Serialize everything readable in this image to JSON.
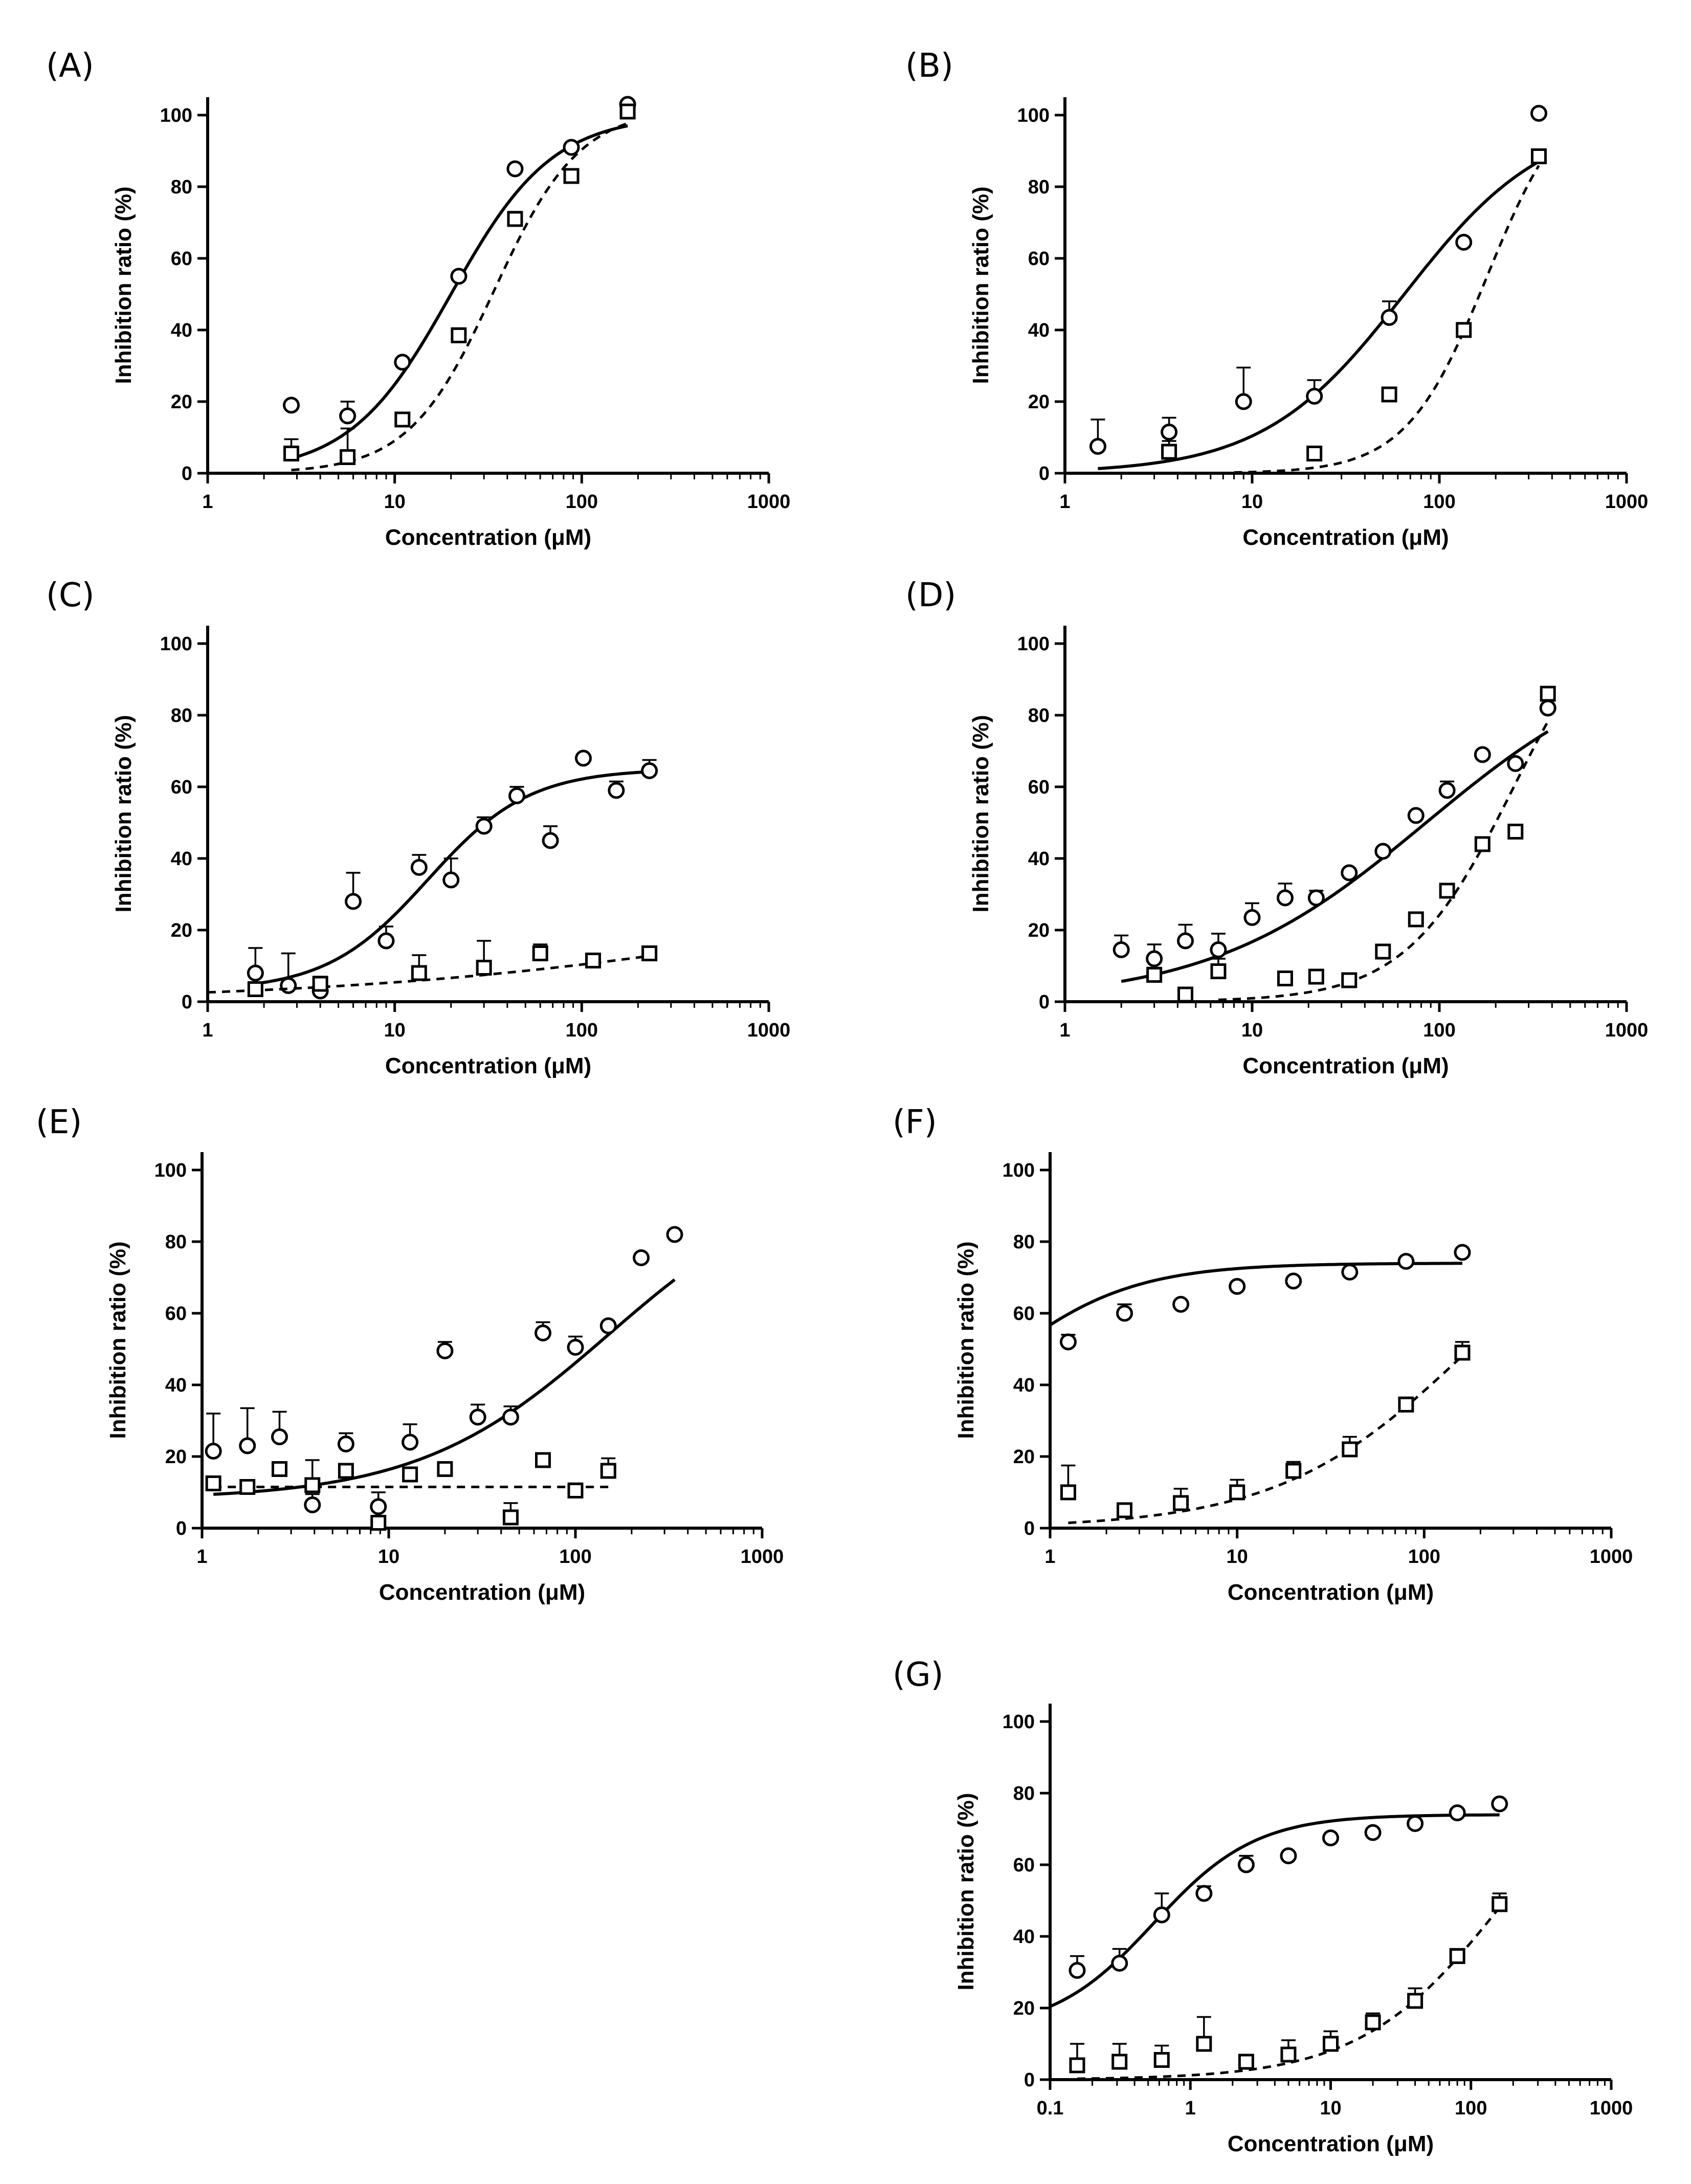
{
  "chart_data": [
    {
      "type": "scatter",
      "panel_label": "(A)",
      "xlabel": "Concentration (μM)",
      "ylabel": "Inhibition ratio (%)",
      "xscale": "log",
      "xlim": [
        1,
        1000
      ],
      "ylim": [
        0,
        105
      ],
      "xticks": [
        1,
        10,
        100,
        1000
      ],
      "xtick_labels": [
        "1",
        "10",
        "100",
        "1000"
      ],
      "yticks": [
        0,
        20,
        40,
        60,
        80,
        100
      ],
      "ytick_labels": [
        "0",
        "20",
        "40",
        "60",
        "80",
        "100"
      ],
      "series": [
        {
          "marker": "circle",
          "fit": "solid",
          "x": [
            2.8,
            5.6,
            11,
            22,
            44,
            88,
            176
          ],
          "y": [
            19,
            16,
            31,
            55,
            85,
            91,
            103
          ],
          "err": [
            0,
            4,
            0,
            0,
            0,
            0,
            0
          ],
          "fit_curve": {
            "bottom": 0,
            "top": 100,
            "ec50": 20,
            "hill": 1.6,
            "x_range": [
              2.8,
              176
            ]
          }
        },
        {
          "marker": "square",
          "fit": "dashed",
          "x": [
            2.8,
            5.6,
            11,
            22,
            44,
            88,
            176
          ],
          "y": [
            5.5,
            4.5,
            15,
            38.5,
            71,
            83,
            101
          ],
          "err": [
            4,
            8,
            0,
            2,
            2,
            0,
            0
          ],
          "fit_curve": {
            "bottom": 0,
            "top": 102,
            "ec50": 34,
            "hill": 1.9,
            "x_range": [
              2.8,
              176
            ]
          }
        }
      ]
    },
    {
      "type": "scatter",
      "panel_label": "(B)",
      "xlabel": "Concentration (μM)",
      "ylabel": "Inhibition ratio (%)",
      "xscale": "log",
      "xlim": [
        1,
        1000
      ],
      "ylim": [
        0,
        105
      ],
      "xticks": [
        1,
        10,
        100,
        1000
      ],
      "xtick_labels": [
        "1",
        "10",
        "100",
        "1000"
      ],
      "yticks": [
        0,
        20,
        40,
        60,
        80,
        100
      ],
      "ytick_labels": [
        "0",
        "20",
        "40",
        "60",
        "80",
        "100"
      ],
      "series": [
        {
          "marker": "circle",
          "fit": "solid",
          "x": [
            1.5,
            3.6,
            9,
            21.5,
            54,
            135,
            340
          ],
          "y": [
            7.5,
            11.5,
            20,
            21.5,
            43.5,
            64.5,
            100.5
          ],
          "err": [
            7.5,
            4,
            9.5,
            4.5,
            4.5,
            0,
            0
          ],
          "fit_curve": {
            "bottom": 0,
            "top": 100,
            "ec50": 65,
            "hill": 1.15,
            "x_range": [
              1.5,
              340
            ]
          }
        },
        {
          "marker": "square",
          "fit": "dashed",
          "x": [
            3.6,
            21.5,
            54,
            135,
            340
          ],
          "y": [
            6,
            5.5,
            22,
            40,
            88.5
          ],
          "err": [
            3,
            0,
            0,
            0,
            0
          ],
          "fit_curve": {
            "bottom": 0,
            "top": 110,
            "ec50": 180,
            "hill": 2.0,
            "x_range": [
              8,
              340
            ]
          }
        }
      ]
    },
    {
      "type": "scatter",
      "panel_label": "(C)",
      "xlabel": "Concentration (μM)",
      "ylabel": "Inhibition ratio (%)",
      "xscale": "log",
      "xlim": [
        1,
        1000
      ],
      "ylim": [
        0,
        105
      ],
      "xticks": [
        1,
        10,
        100,
        1000
      ],
      "xtick_labels": [
        "1",
        "10",
        "100",
        "1000"
      ],
      "yticks": [
        0,
        20,
        40,
        60,
        80,
        100
      ],
      "ytick_labels": [
        "0",
        "20",
        "40",
        "60",
        "80",
        "100"
      ],
      "series": [
        {
          "marker": "circle",
          "fit": "solid",
          "x": [
            1.8,
            2.7,
            4,
            6,
            9,
            13.5,
            20,
            30,
            45,
            68,
            102,
            153,
            230
          ],
          "y": [
            8,
            4.5,
            3,
            28,
            17,
            37.5,
            34,
            49,
            57.5,
            45,
            68,
            59,
            64.5
          ],
          "err": [
            7,
            9,
            0,
            8,
            4,
            3.5,
            6,
            2.5,
            2.5,
            4,
            0,
            2.5,
            3
          ],
          "fit_curve": {
            "bottom": 3,
            "top": 65,
            "ec50": 15,
            "hill": 1.6,
            "x_range": [
              1.8,
              230
            ]
          }
        },
        {
          "marker": "square",
          "fit": "dashed",
          "x": [
            1.8,
            4,
            13.5,
            30,
            60,
            115,
            230
          ],
          "y": [
            3.5,
            5,
            8,
            9.5,
            13.5,
            11.5,
            13.5
          ],
          "err": [
            0,
            2,
            5,
            7.5,
            2.5,
            0,
            0
          ],
          "fit_curve": {
            "bottom": 0,
            "top": 40,
            "ec50": 2000,
            "hill": 0.35,
            "x_range": [
              1,
              230
            ]
          }
        }
      ]
    },
    {
      "type": "scatter",
      "panel_label": "(D)",
      "xlabel": "Concentration (μM)",
      "ylabel": "Inhibition ratio (%)",
      "xscale": "log",
      "xlim": [
        1,
        1000
      ],
      "ylim": [
        0,
        105
      ],
      "xticks": [
        1,
        10,
        100,
        1000
      ],
      "xtick_labels": [
        "1",
        "10",
        "100",
        "1000"
      ],
      "yticks": [
        0,
        20,
        40,
        60,
        80,
        100
      ],
      "ytick_labels": [
        "0",
        "20",
        "40",
        "60",
        "80",
        "100"
      ],
      "series": [
        {
          "marker": "circle",
          "fit": "solid",
          "x": [
            2,
            3,
            4.4,
            6.6,
            10,
            15,
            22,
            33,
            50,
            75,
            110,
            170,
            255,
            380
          ],
          "y": [
            14.5,
            12,
            17,
            14.5,
            23.5,
            29,
            29,
            36,
            42,
            52,
            59,
            69,
            66.5,
            82
          ],
          "err": [
            4,
            4,
            4.5,
            4.5,
            4,
            4,
            2,
            0,
            0,
            0,
            2.5,
            0,
            0,
            0
          ],
          "fit_curve": {
            "bottom": 0,
            "top": 100,
            "ec50": 85,
            "hill": 0.75,
            "x_range": [
              2,
              380
            ]
          }
        },
        {
          "marker": "square",
          "fit": "dashed",
          "x": [
            3,
            4.4,
            6.6,
            15,
            22,
            33,
            50,
            75,
            110,
            170,
            255,
            380
          ],
          "y": [
            7.5,
            2,
            8.5,
            6.5,
            7,
            6,
            14,
            23,
            31,
            44,
            47.5,
            86
          ],
          "err": [
            2,
            0,
            3.5,
            0,
            0,
            0,
            0,
            0,
            0,
            0,
            0,
            0
          ],
          "fit_curve": {
            "bottom": 0,
            "top": 120,
            "ec50": 250,
            "hill": 1.5,
            "x_range": [
              6.6,
              380
            ]
          }
        }
      ]
    },
    {
      "type": "scatter",
      "panel_label": "(E)",
      "xlabel": "Concentration (μM)",
      "ylabel": "Inhibition ratio (%)",
      "xscale": "log",
      "xlim": [
        1,
        1000
      ],
      "ylim": [
        0,
        105
      ],
      "xticks": [
        1,
        10,
        100,
        1000
      ],
      "xtick_labels": [
        "1",
        "10",
        "100",
        "1000"
      ],
      "yticks": [
        0,
        20,
        40,
        60,
        80,
        100
      ],
      "ytick_labels": [
        "0",
        "20",
        "40",
        "60",
        "80",
        "100"
      ],
      "series": [
        {
          "marker": "circle",
          "fit": "solid",
          "x": [
            1.15,
            1.75,
            2.6,
            3.9,
            5.9,
            8.8,
            13,
            20,
            30,
            45,
            67,
            100,
            150,
            225,
            340
          ],
          "y": [
            21.5,
            23,
            25.5,
            6.5,
            23.5,
            6,
            24,
            49.5,
            31,
            31,
            54.5,
            50.5,
            56.5,
            75.5,
            82
          ],
          "err": [
            10.5,
            10.5,
            7,
            3,
            3,
            4,
            5,
            2.5,
            3.5,
            3,
            3,
            3,
            0,
            0,
            0
          ],
          "fit_curve": {
            "bottom": 8,
            "top": 100,
            "ec50": 150,
            "hill": 0.85,
            "x_range": [
              1.15,
              340
            ]
          }
        },
        {
          "marker": "square",
          "fit": "dashed",
          "x": [
            1.15,
            1.75,
            2.6,
            3.9,
            5.9,
            8.8,
            13,
            20,
            45,
            67,
            100,
            150
          ],
          "y": [
            12.5,
            11.5,
            16.5,
            12,
            16,
            1.5,
            15,
            16.5,
            3,
            19,
            10.5,
            16
          ],
          "err": [
            0,
            0,
            0,
            7,
            0,
            0,
            0,
            0,
            4,
            0,
            2,
            3.5
          ],
          "fit_curve": {
            "bottom": 11.5,
            "top": 11.5,
            "ec50": 10,
            "hill": 1,
            "x_range": [
              1.15,
              150
            ]
          }
        }
      ]
    },
    {
      "type": "scatter",
      "panel_label": "(F)",
      "xlabel": "Concentration (μM)",
      "ylabel": "Inhibition ratio (%)",
      "xscale": "log",
      "xlim": [
        1,
        1000
      ],
      "ylim": [
        0,
        105
      ],
      "xticks": [
        1,
        10,
        100,
        1000
      ],
      "xtick_labels": [
        "1",
        "10",
        "100",
        "1000"
      ],
      "yticks": [
        0,
        20,
        40,
        60,
        80,
        100
      ],
      "ytick_labels": [
        "0",
        "20",
        "40",
        "60",
        "80",
        "100"
      ],
      "series": [
        {
          "marker": "circle",
          "fit": "solid",
          "x": [
            1.25,
            2.5,
            5,
            10,
            20,
            40,
            80,
            160
          ],
          "y": [
            52,
            60,
            62.5,
            67.5,
            69,
            71.5,
            74.5,
            77
          ],
          "err": [
            2,
            2.5,
            0,
            0,
            0,
            0,
            0,
            0
          ],
          "fit_curve": {
            "bottom": 17,
            "top": 74,
            "ec50": 0.5,
            "hill": 1.2,
            "x_range": [
              1,
              160
            ]
          }
        },
        {
          "marker": "square",
          "fit": "dashed",
          "x": [
            1.25,
            2.5,
            5,
            10,
            20,
            40,
            80,
            160
          ],
          "y": [
            10,
            5,
            7,
            10,
            16,
            22,
            34.5,
            49
          ],
          "err": [
            7.5,
            0,
            4,
            3.5,
            2.5,
            3.5,
            2,
            3
          ],
          "fit_curve": {
            "bottom": 0,
            "top": 100,
            "ec50": 175,
            "hill": 0.85,
            "x_range": [
              1.25,
              160
            ]
          }
        }
      ]
    },
    {
      "type": "scatter",
      "panel_label": "(G)",
      "xlabel": "Concentration (μM)",
      "ylabel": "Inhibition ratio (%)",
      "xscale": "log",
      "xlim": [
        0.1,
        1000
      ],
      "ylim": [
        0,
        105
      ],
      "xticks": [
        0.1,
        1,
        10,
        100,
        1000
      ],
      "xtick_labels": [
        "0.1",
        "1",
        "10",
        "100",
        "1000"
      ],
      "yticks": [
        0,
        20,
        40,
        60,
        80,
        100
      ],
      "ytick_labels": [
        "0",
        "20",
        "40",
        "60",
        "80",
        "100"
      ],
      "series": [
        {
          "marker": "circle",
          "fit": "solid",
          "x": [
            0.156,
            0.3125,
            0.625,
            1.25,
            2.5,
            5,
            10,
            20,
            40,
            80,
            160
          ],
          "y": [
            30.5,
            32.5,
            46,
            52,
            60,
            62.5,
            67.5,
            69,
            71.5,
            74.5,
            77
          ],
          "err": [
            4,
            4,
            6,
            2,
            2.5,
            0,
            0,
            0,
            0,
            0,
            0
          ],
          "fit_curve": {
            "bottom": 13.5,
            "top": 74,
            "ec50": 0.55,
            "hill": 1.2,
            "x_range": [
              0.1,
              160
            ]
          }
        },
        {
          "marker": "square",
          "fit": "dashed",
          "x": [
            0.156,
            0.3125,
            0.625,
            1.25,
            2.5,
            5,
            10,
            20,
            40,
            80,
            160
          ],
          "y": [
            4,
            5,
            5.5,
            10,
            5,
            7,
            10,
            16,
            22,
            34.5,
            49
          ],
          "err": [
            6,
            5,
            4,
            7.5,
            0,
            4,
            3.5,
            2.5,
            3.5,
            2,
            3
          ],
          "fit_curve": {
            "bottom": 0,
            "top": 100,
            "ec50": 175,
            "hill": 0.85,
            "x_range": [
              0.156,
              160
            ]
          }
        }
      ]
    }
  ]
}
